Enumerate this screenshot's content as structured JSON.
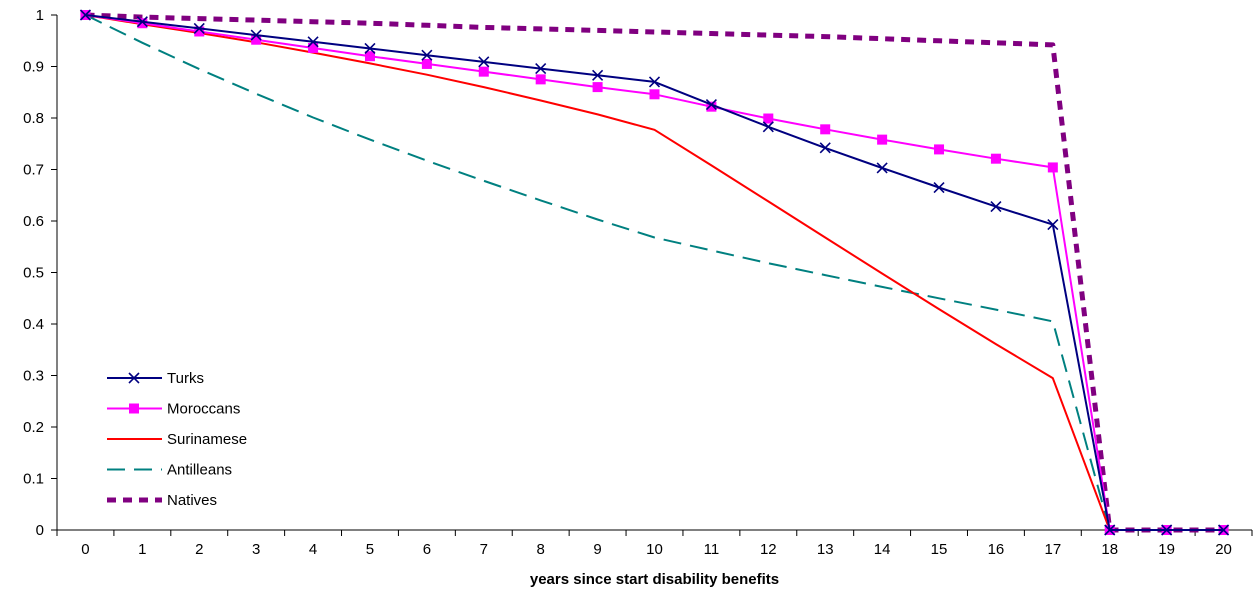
{
  "chart_data": {
    "type": "line",
    "title": "",
    "xlabel": "years since start disability benefits",
    "ylabel": "",
    "x": [
      0,
      1,
      2,
      3,
      4,
      5,
      6,
      7,
      8,
      9,
      10,
      11,
      12,
      13,
      14,
      15,
      16,
      17,
      18,
      19,
      20
    ],
    "x_tick_labels": [
      "0",
      "1",
      "2",
      "3",
      "4",
      "5",
      "6",
      "7",
      "8",
      "9",
      "10",
      "11",
      "12",
      "13",
      "14",
      "15",
      "16",
      "17",
      "18",
      "19",
      "20"
    ],
    "ylim": [
      0,
      1
    ],
    "y_ticks": [
      0,
      0.1,
      0.2,
      0.3,
      0.4,
      0.5,
      0.6,
      0.7,
      0.8,
      0.9,
      1
    ],
    "y_tick_labels": [
      "0",
      "0.1",
      "0.2",
      "0.3",
      "0.4",
      "0.5",
      "0.6",
      "0.7",
      "0.8",
      "0.9",
      "1"
    ],
    "grid": false,
    "legend_position": "bottom-left",
    "series": [
      {
        "name": "Turks",
        "color": "#000080",
        "line_style": "solid",
        "marker": "x",
        "values": [
          1,
          0.987,
          0.974,
          0.961,
          0.948,
          0.935,
          0.922,
          0.909,
          0.896,
          0.883,
          0.87,
          0.826,
          0.783,
          0.742,
          0.703,
          0.665,
          0.628,
          0.593,
          0,
          0,
          0
        ]
      },
      {
        "name": "Moroccans",
        "color": "#FF00FF",
        "line_style": "solid",
        "marker": "square",
        "values": [
          1,
          0.984,
          0.968,
          0.952,
          0.936,
          0.92,
          0.905,
          0.89,
          0.875,
          0.86,
          0.846,
          0.822,
          0.799,
          0.778,
          0.758,
          0.739,
          0.721,
          0.704,
          0,
          0,
          0
        ]
      },
      {
        "name": "Surinamese",
        "color": "#FF0000",
        "line_style": "solid",
        "marker": "none",
        "values": [
          1,
          0.982,
          0.965,
          0.947,
          0.927,
          0.906,
          0.884,
          0.86,
          0.834,
          0.807,
          0.777,
          0.708,
          0.638,
          0.568,
          0.498,
          0.429,
          0.361,
          0.295,
          0,
          0,
          0
        ]
      },
      {
        "name": "Antilleans",
        "color": "#008080",
        "line_style": "dashed",
        "marker": "none",
        "values": [
          1,
          0.946,
          0.895,
          0.847,
          0.801,
          0.758,
          0.717,
          0.678,
          0.64,
          0.603,
          0.568,
          0.543,
          0.518,
          0.495,
          0.472,
          0.45,
          0.428,
          0.405,
          0,
          0,
          0
        ]
      },
      {
        "name": "Natives",
        "color": "#800080",
        "line_style": "dotted",
        "marker": "none",
        "values": [
          1,
          0.996,
          0.993,
          0.99,
          0.987,
          0.984,
          0.98,
          0.976,
          0.973,
          0.97,
          0.967,
          0.964,
          0.961,
          0.958,
          0.954,
          0.95,
          0.946,
          0.942,
          0,
          0,
          0
        ]
      }
    ]
  }
}
